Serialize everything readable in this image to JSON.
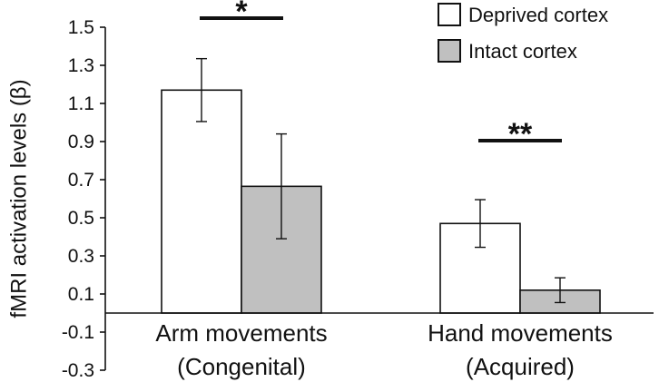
{
  "chart_data": {
    "type": "bar",
    "ylabel": "fMRI activation levels (β)",
    "xlabel": "",
    "title": "",
    "ylim": [
      -0.3,
      1.5
    ],
    "yticks": [
      "1.5",
      "1.3",
      "1.1",
      "0.9",
      "0.7",
      "0.5",
      "0.3",
      "0.1",
      "-0.1",
      "-0.3"
    ],
    "categories": [
      {
        "line1": "Arm movements",
        "line2": "(Congenital)"
      },
      {
        "line1": "Hand movements",
        "line2": "(Acquired)"
      }
    ],
    "series": [
      {
        "name": "Deprived cortex",
        "color": "#ffffff",
        "values": [
          1.17,
          0.47
        ],
        "errors": [
          0.165,
          0.125
        ]
      },
      {
        "name": "Intact cortex",
        "color": "#c0c0c0",
        "values": [
          0.665,
          0.12
        ],
        "errors": [
          0.275,
          0.065
        ]
      }
    ],
    "significance": [
      {
        "category": 0,
        "label": "*"
      },
      {
        "category": 1,
        "label": "**"
      }
    ],
    "legend_position": "top-right",
    "grid": false
  }
}
